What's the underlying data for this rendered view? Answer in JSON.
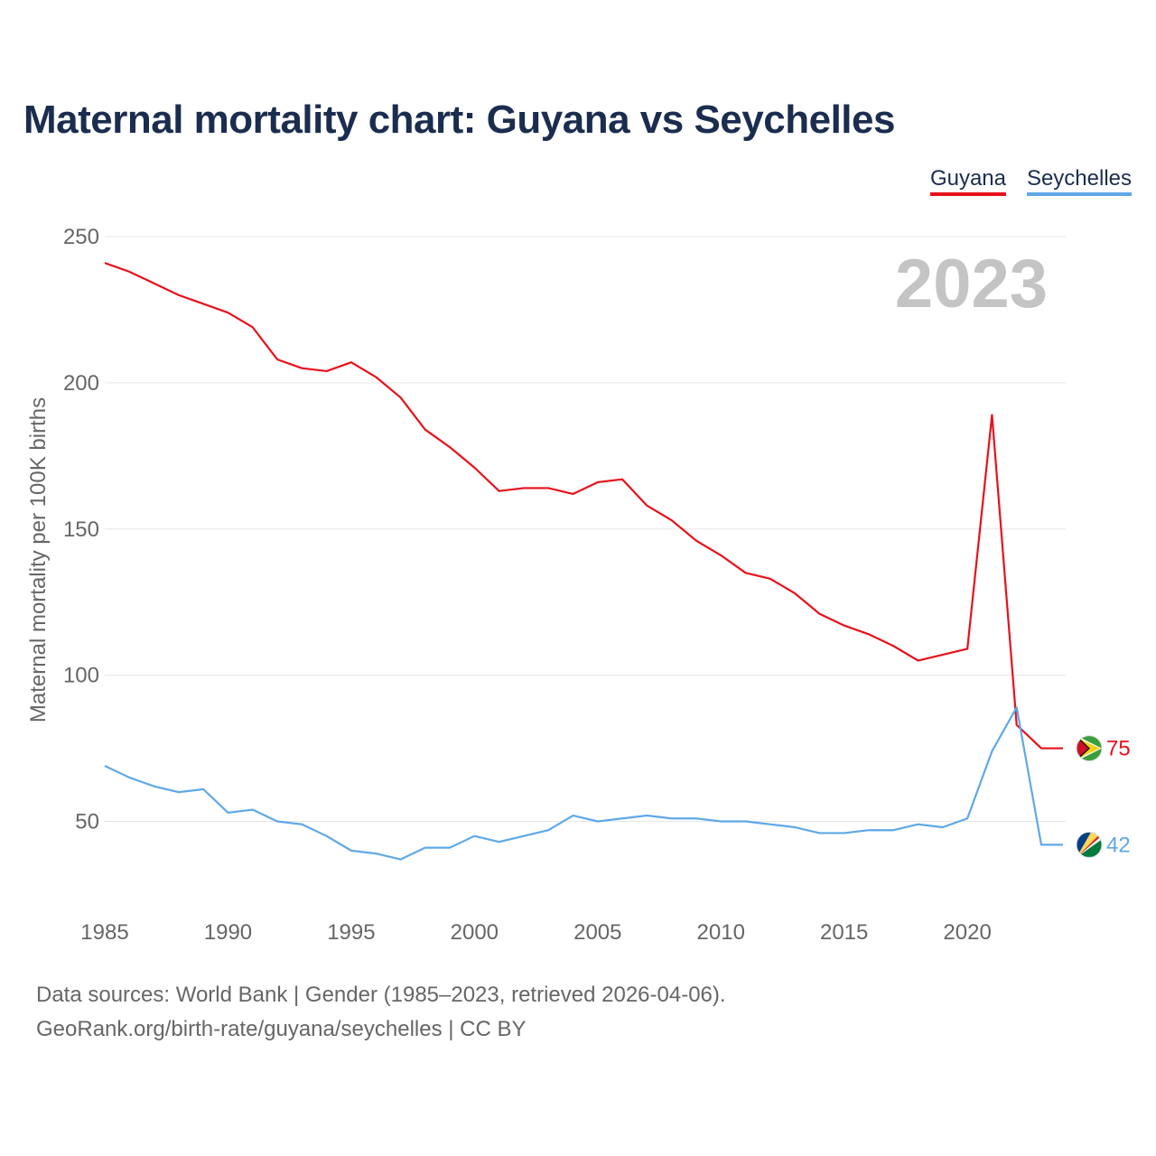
{
  "title": "Maternal mortality chart: Guyana vs Seychelles",
  "legend": [
    {
      "label": "Guyana",
      "color": "#e8101a"
    },
    {
      "label": "Seychelles",
      "color": "#5fa8e8"
    }
  ],
  "year_label": "2023",
  "footer": {
    "line1": "Data sources: World Bank | Gender (1985–2023, retrieved 2026-04-06).",
    "line2": "GeoRank.org/birth-rate/guyana/seychelles | CC BY"
  },
  "chart_data": {
    "type": "line",
    "title": "Maternal mortality chart: Guyana vs Seychelles",
    "xlabel": "",
    "ylabel": "Maternal mortality per 100K births",
    "xlim": [
      1985,
      2023
    ],
    "ylim": [
      20,
      250
    ],
    "xticks": [
      1985,
      1990,
      1995,
      2000,
      2005,
      2010,
      2015,
      2020
    ],
    "yticks": [
      50,
      100,
      150,
      200,
      250
    ],
    "grid": true,
    "legend_position": "top-right",
    "x": [
      1985,
      1986,
      1987,
      1988,
      1989,
      1990,
      1991,
      1992,
      1993,
      1994,
      1995,
      1996,
      1997,
      1998,
      1999,
      2000,
      2001,
      2002,
      2003,
      2004,
      2005,
      2006,
      2007,
      2008,
      2009,
      2010,
      2011,
      2012,
      2013,
      2014,
      2015,
      2016,
      2017,
      2018,
      2019,
      2020,
      2021,
      2022,
      2023
    ],
    "series": [
      {
        "name": "Guyana",
        "color": "#e8101a",
        "end_label": "75",
        "values": [
          241,
          238,
          234,
          230,
          227,
          224,
          219,
          208,
          205,
          204,
          207,
          202,
          195,
          184,
          178,
          171,
          163,
          164,
          164,
          162,
          166,
          167,
          158,
          153,
          146,
          141,
          135,
          133,
          128,
          121,
          117,
          114,
          110,
          105,
          107,
          109,
          189,
          83,
          75
        ]
      },
      {
        "name": "Seychelles",
        "color": "#5fa8e8",
        "end_label": "42",
        "values": [
          69,
          65,
          62,
          60,
          61,
          53,
          54,
          50,
          49,
          45,
          40,
          39,
          37,
          41,
          41,
          45,
          43,
          45,
          47,
          52,
          50,
          51,
          52,
          51,
          51,
          50,
          50,
          49,
          48,
          46,
          46,
          47,
          47,
          49,
          48,
          51,
          74,
          89,
          42
        ]
      }
    ]
  }
}
